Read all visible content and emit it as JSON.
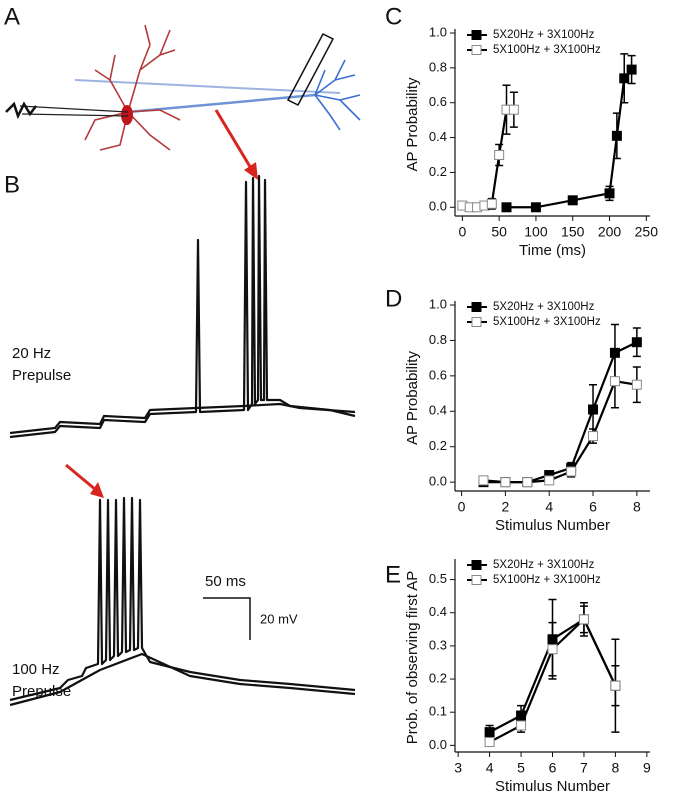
{
  "panels": [
    "A",
    "B",
    "C",
    "D",
    "E"
  ],
  "trace_labels": [
    [
      "20 Hz",
      "Prepulse"
    ],
    [
      "100 Hz",
      "Prepulse"
    ]
  ],
  "scale_bar": {
    "time": "50 ms",
    "voltage": "20 mV"
  },
  "chart_data": [
    {
      "type": "line",
      "xlabel": "Time (ms)",
      "ylabel": "AP Probability",
      "legend": "upper left",
      "xlim": [
        -10,
        255
      ],
      "xticks": [
        0,
        50,
        100,
        150,
        200,
        250
      ],
      "ylim": [
        -0.05,
        1.0
      ],
      "yticks": [
        {
          "value": 0,
          "label": "0.0"
        },
        0.2,
        0.4,
        0.6,
        0.8,
        {
          "value": 1,
          "label": "1.0"
        }
      ],
      "series": [
        {
          "name": "5X20Hz + 3X100Hz",
          "color": "#000000",
          "marker_face": "#000000",
          "x": [
            60,
            100,
            150,
            200,
            210,
            220,
            230
          ],
          "values": [
            0.0,
            0.0,
            0.04,
            0.08,
            0.41,
            0.74,
            0.79
          ],
          "errors": [
            0.01,
            0.01,
            0.02,
            0.04,
            0.13,
            0.14,
            0.08
          ]
        },
        {
          "name": "5X100Hz + 3X100Hz",
          "color": "#000000",
          "marker_face": "#ffffff",
          "x": [
            0,
            10,
            20,
            30,
            40,
            50,
            60,
            70
          ],
          "values": [
            0.01,
            0.0,
            0.0,
            0.01,
            0.02,
            0.3,
            0.56,
            0.56
          ],
          "errors": [
            0.02,
            0.01,
            0.01,
            0.02,
            0.03,
            0.06,
            0.14,
            0.1
          ]
        }
      ]
    },
    {
      "type": "line",
      "xlabel": "Stimulus Number",
      "ylabel": "AP Probability",
      "legend": "upper left",
      "xlim": [
        -0.3,
        8.6
      ],
      "xticks": [
        0,
        2,
        4,
        6,
        8
      ],
      "ylim": [
        -0.05,
        1.0
      ],
      "yticks": [
        {
          "value": 0,
          "label": "0.0"
        },
        0.2,
        0.4,
        0.6,
        0.8,
        {
          "value": 1,
          "label": "1.0"
        }
      ],
      "series": [
        {
          "name": "5X20Hz + 3X100Hz",
          "color": "#000000",
          "marker_face": "#000000",
          "x": [
            1,
            2,
            3,
            4,
            5,
            6,
            7,
            8
          ],
          "values": [
            0.0,
            0.0,
            0.0,
            0.04,
            0.08,
            0.41,
            0.73,
            0.79
          ],
          "errors": [
            0.02,
            0.01,
            0.01,
            0.02,
            0.03,
            0.14,
            0.16,
            0.08
          ]
        },
        {
          "name": "5X100Hz + 3X100Hz",
          "color": "#000000",
          "marker_face": "#ffffff",
          "x": [
            1,
            2,
            3,
            4,
            5,
            6,
            7,
            8
          ],
          "values": [
            0.01,
            0.0,
            0.0,
            0.01,
            0.06,
            0.26,
            0.57,
            0.55
          ],
          "errors": [
            0.02,
            0.01,
            0.01,
            0.02,
            0.03,
            0.04,
            0.15,
            0.1
          ]
        }
      ]
    },
    {
      "type": "line",
      "xlabel": "Stimulus Number",
      "ylabel": "Prob. of observing first AP",
      "legend": "upper left",
      "xlim": [
        2.9,
        9.1
      ],
      "xticks": [
        3,
        4,
        5,
        6,
        7,
        8,
        9
      ],
      "ylim": [
        -0.02,
        0.55
      ],
      "yticks": [
        {
          "value": 0,
          "label": "0.0"
        },
        0.1,
        0.2,
        0.3,
        0.4,
        0.5
      ],
      "series": [
        {
          "name": "5X20Hz + 3X100Hz",
          "color": "#000000",
          "marker_face": "#000000",
          "x": [
            4,
            5,
            6,
            7,
            8
          ],
          "values": [
            0.04,
            0.09,
            0.32,
            0.38,
            0.18
          ],
          "errors": [
            0.02,
            0.03,
            0.12,
            0.05,
            0.14
          ]
        },
        {
          "name": "5X100Hz + 3X100Hz",
          "color": "#000000",
          "marker_face": "#ffffff",
          "x": [
            4,
            5,
            6,
            7,
            8
          ],
          "values": [
            0.01,
            0.06,
            0.29,
            0.38,
            0.18
          ],
          "errors": [
            0.01,
            0.02,
            0.08,
            0.04,
            0.06
          ]
        }
      ]
    }
  ]
}
